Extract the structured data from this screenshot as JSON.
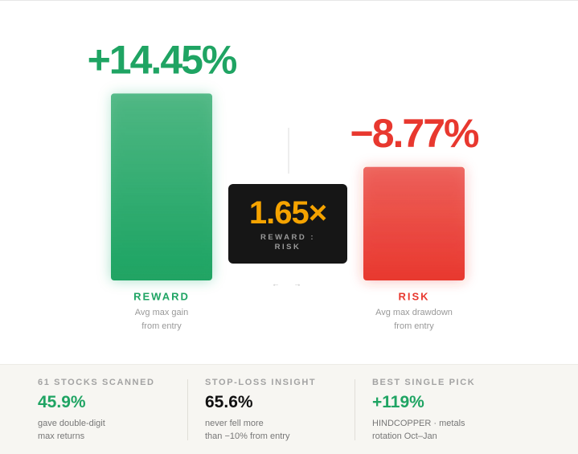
{
  "chart_data": {
    "type": "bar",
    "categories": [
      "REWARD",
      "RISK"
    ],
    "values": [
      14.45,
      -8.77
    ],
    "value_labels": [
      "+14.45%",
      "−8.77%"
    ],
    "colors": [
      "#1fa463",
      "#e8382f"
    ],
    "descriptions": [
      [
        "Avg max gain",
        "from entry"
      ],
      [
        "Avg max drawdown",
        "from entry"
      ]
    ]
  },
  "ratio": {
    "value": "1.65×",
    "label": [
      "REWARD :",
      "RISK"
    ]
  },
  "stats": [
    {
      "label": "61 STOCKS SCANNED",
      "value": "45.9%",
      "color": "#1fa463",
      "description": [
        "gave double-digit",
        "max returns"
      ]
    },
    {
      "label": "STOP-LOSS INSIGHT",
      "value": "65.6%",
      "color": "#111111",
      "description": [
        "never fell more",
        "than −10% from entry"
      ]
    },
    {
      "label": "BEST SINGLE PICK",
      "value": "+119%",
      "color": "#1fa463",
      "description": [
        "HINDCOPPER · metals",
        "rotation Oct–Jan"
      ]
    }
  ]
}
